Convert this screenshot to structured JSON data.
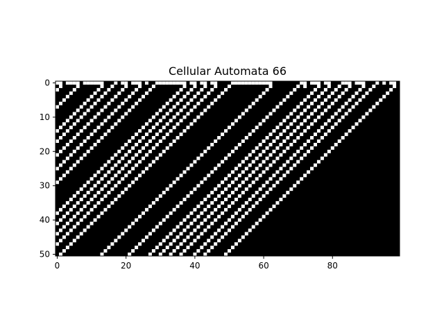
{
  "chart_data": {
    "type": "heatmap",
    "title": "Cellular Automata 66",
    "xlabel": "",
    "ylabel": "",
    "grid": false,
    "colormap": "gray",
    "colors": {
      "off": "#000000",
      "on": "#ffffff"
    },
    "rule": 66,
    "width": 100,
    "generations": 51,
    "xlim": [
      -0.5,
      99.5
    ],
    "ylim": [
      50.5,
      -0.5
    ],
    "x_ticks": [
      0,
      20,
      40,
      60,
      80
    ],
    "y_ticks": [
      0,
      10,
      20,
      30,
      40,
      50
    ],
    "initial_row": [
      1,
      1,
      0,
      1,
      1,
      1,
      1,
      0,
      1,
      1,
      1,
      1,
      1,
      1,
      0,
      0,
      0,
      1,
      0,
      1,
      1,
      0,
      1,
      1,
      1,
      0,
      1,
      0,
      0,
      1,
      1,
      1,
      1,
      1,
      1,
      1,
      1,
      1,
      0,
      1,
      1,
      0,
      1,
      1,
      0,
      1,
      1,
      0,
      0,
      0,
      0,
      1,
      1,
      1,
      1,
      1,
      1,
      1,
      1,
      1,
      1,
      1,
      1,
      0,
      0,
      0,
      0,
      0,
      0,
      0,
      0,
      1,
      1,
      0,
      1,
      1,
      1,
      0,
      1,
      1,
      0,
      0,
      0,
      1,
      1,
      1,
      0,
      1,
      1,
      1,
      0,
      0,
      0,
      1,
      0,
      1,
      0,
      1,
      1,
      0
    ]
  }
}
